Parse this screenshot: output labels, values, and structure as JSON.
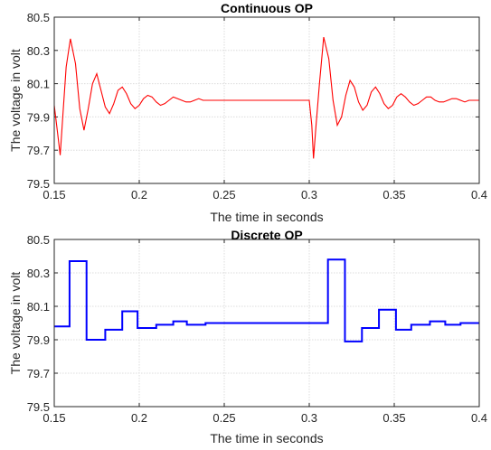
{
  "chart_data": [
    {
      "type": "line",
      "title": "Continuous OP",
      "xlabel": "The time in seconds",
      "ylabel": "The voltage in volt",
      "xlim": [
        0.15,
        0.4
      ],
      "ylim": [
        79.5,
        80.5
      ],
      "xticks": [
        "0.15",
        "0.2",
        "0.25",
        "0.3",
        "0.35",
        "0.4"
      ],
      "yticks": [
        "79.5",
        "79.7",
        "79.9",
        "80.1",
        "80.3",
        "80.5"
      ],
      "grid": true,
      "color": "#ff0000",
      "series": [
        {
          "x": [
            0.15,
            0.152,
            0.1535,
            0.155,
            0.157,
            0.1595,
            0.1625,
            0.165,
            0.1675,
            0.17,
            0.1725,
            0.175,
            0.1775,
            0.18,
            0.1825,
            0.185,
            0.1875,
            0.19,
            0.1925,
            0.195,
            0.1975,
            0.2,
            0.2025,
            0.205,
            0.2075,
            0.21,
            0.2125,
            0.215,
            0.2175,
            0.22,
            0.2225,
            0.225,
            0.2275,
            0.23,
            0.2325,
            0.235,
            0.2375,
            0.24,
            0.2425,
            0.245,
            0.25,
            0.26,
            0.27,
            0.28,
            0.29,
            0.3,
            0.3015,
            0.3025,
            0.304,
            0.306,
            0.3085,
            0.3115,
            0.314,
            0.3165,
            0.319,
            0.3215,
            0.324,
            0.3265,
            0.329,
            0.3315,
            0.334,
            0.3365,
            0.339,
            0.3415,
            0.344,
            0.3465,
            0.349,
            0.3515,
            0.354,
            0.3565,
            0.359,
            0.3615,
            0.364,
            0.3665,
            0.369,
            0.3715,
            0.374,
            0.3765,
            0.379,
            0.3815,
            0.384,
            0.3865,
            0.389,
            0.3915,
            0.394,
            0.3965,
            0.4
          ],
          "y": [
            79.97,
            79.8,
            79.67,
            79.9,
            80.2,
            80.37,
            80.22,
            79.95,
            79.82,
            79.95,
            80.1,
            80.16,
            80.06,
            79.96,
            79.92,
            79.98,
            80.06,
            80.08,
            80.04,
            79.98,
            79.95,
            79.97,
            80.01,
            80.03,
            80.02,
            79.99,
            79.97,
            79.98,
            80.0,
            80.02,
            80.01,
            80.0,
            79.99,
            79.99,
            80.0,
            80.01,
            80.0,
            80.0,
            80.0,
            80.0,
            80.0,
            80.0,
            80.0,
            80.0,
            80.0,
            80.0,
            79.85,
            79.65,
            79.85,
            80.1,
            80.38,
            80.25,
            80.0,
            79.85,
            79.9,
            80.03,
            80.12,
            80.08,
            79.99,
            79.94,
            79.97,
            80.05,
            80.08,
            80.04,
            79.98,
            79.95,
            79.97,
            80.02,
            80.04,
            80.02,
            79.99,
            79.97,
            79.98,
            80.0,
            80.02,
            80.02,
            80.0,
            79.99,
            79.99,
            80.0,
            80.01,
            80.01,
            80.0,
            79.99,
            80.0,
            80.0,
            80.0
          ]
        }
      ]
    },
    {
      "type": "line",
      "title": "Discrete OP",
      "xlabel": "The time in seconds",
      "ylabel": "The voltage in volt",
      "xlim": [
        0.15,
        0.4
      ],
      "ylim": [
        79.5,
        80.5
      ],
      "xticks": [
        "0.15",
        "0.2",
        "0.25",
        "0.3",
        "0.35",
        "0.4"
      ],
      "yticks": [
        "79.5",
        "79.7",
        "79.9",
        "80.1",
        "80.3",
        "80.5"
      ],
      "grid": true,
      "color": "#0000ff",
      "step": true,
      "series": [
        {
          "x": [
            0.15,
            0.159,
            0.169,
            0.18,
            0.19,
            0.199,
            0.21,
            0.22,
            0.228,
            0.239,
            0.249,
            0.259,
            0.268,
            0.279,
            0.289,
            0.299,
            0.311,
            0.321,
            0.331,
            0.341,
            0.351,
            0.36,
            0.371,
            0.38,
            0.389,
            0.4
          ],
          "y": [
            79.98,
            80.37,
            79.9,
            79.96,
            80.07,
            79.97,
            79.99,
            80.01,
            79.99,
            80.0,
            80.0,
            80.0,
            80.0,
            80.0,
            80.0,
            80.0,
            80.38,
            79.89,
            79.97,
            80.08,
            79.96,
            79.99,
            80.01,
            79.99,
            80.0,
            80.0
          ]
        }
      ]
    }
  ]
}
